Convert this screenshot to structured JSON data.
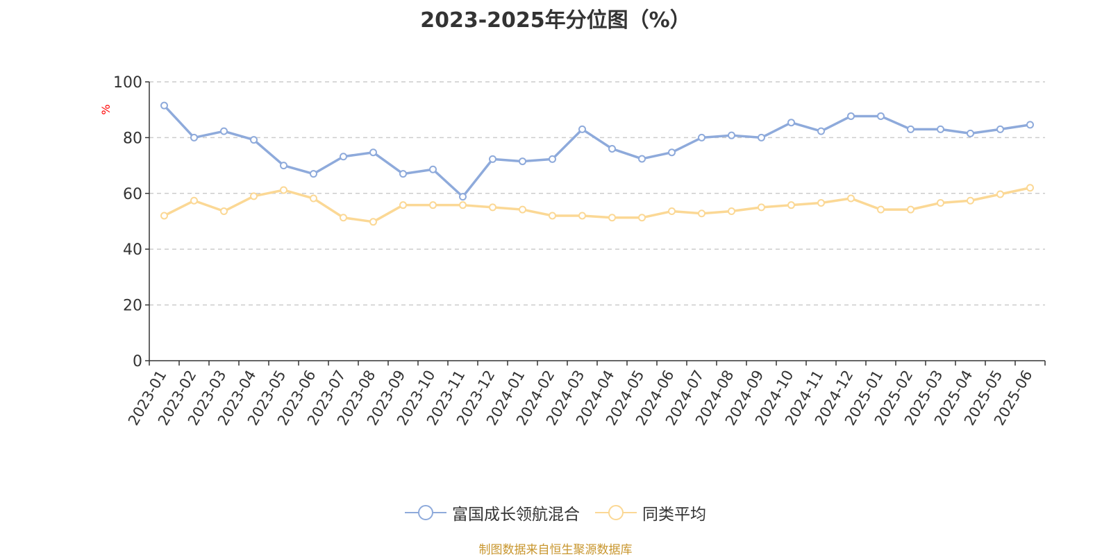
{
  "title": "2023-2025年分位图（%）",
  "source_text": "制图数据来自恒生聚源数据库",
  "colors": {
    "series_1": "#8eaadb",
    "series_2": "#fbd895",
    "source": "#c8962e",
    "ylabel": "#ff0000",
    "grid": "#cccccc",
    "axis": "#333333"
  },
  "chart_data": {
    "type": "line",
    "title": "2023-2025年分位图（%）",
    "xlabel": "",
    "ylabel": "%",
    "ylim": [
      0,
      100
    ],
    "yticks": [
      0,
      20,
      40,
      60,
      80,
      100
    ],
    "grid": true,
    "legend_position": "bottom",
    "categories": [
      "2023-01",
      "2023-02",
      "2023-03",
      "2023-04",
      "2023-05",
      "2023-06",
      "2023-07",
      "2023-08",
      "2023-09",
      "2023-10",
      "2023-11",
      "2023-12",
      "2024-01",
      "2024-02",
      "2024-03",
      "2024-04",
      "2024-05",
      "2024-06",
      "2024-07",
      "2024-08",
      "2024-09",
      "2024-10",
      "2024-11",
      "2024-12",
      "2025-01",
      "2025-02",
      "2025-03",
      "2025-04",
      "2025-05",
      "2025-06"
    ],
    "series": [
      {
        "name": "富国成长领航混合",
        "values": [
          91.5,
          80,
          82.3,
          79.2,
          70,
          67,
          73.2,
          74.7,
          67,
          68.6,
          58.8,
          72.3,
          71.5,
          72.3,
          83,
          76,
          72.4,
          74.7,
          80,
          80.8,
          80,
          85.4,
          82.3,
          87.7,
          87.7,
          83,
          83,
          81.5,
          83,
          84.6
        ]
      },
      {
        "name": "同类平均",
        "values": [
          52,
          57.4,
          53.6,
          59,
          61.2,
          58.2,
          51.3,
          49.8,
          55.8,
          55.8,
          55.8,
          55,
          54.2,
          52,
          52,
          51.3,
          51.3,
          53.6,
          52.8,
          53.6,
          55,
          55.8,
          56.6,
          58.2,
          54.2,
          54.2,
          56.6,
          57.4,
          59.7,
          62
        ]
      }
    ]
  }
}
